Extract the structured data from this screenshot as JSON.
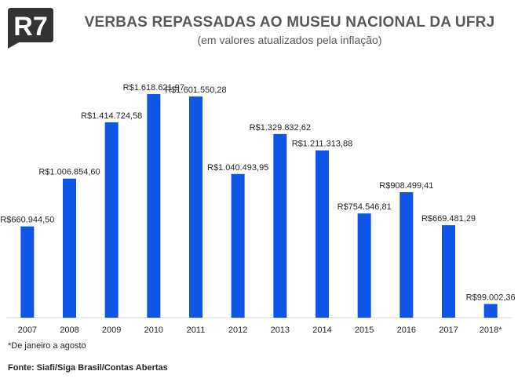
{
  "brand": {
    "logo_text": "R7",
    "logo_color": "#333333"
  },
  "header": {
    "title": "VERBAS REPASSADAS AO MUSEU NACIONAL DA UFRJ",
    "subtitle": "(em valores atualizados pela inflação)"
  },
  "chart_data": {
    "type": "bar",
    "categories": [
      "2007",
      "2008",
      "2009",
      "2010",
      "2011",
      "2012",
      "2013",
      "2014",
      "2015",
      "2016",
      "2017",
      "2018*"
    ],
    "values": [
      660944.5,
      1006854.6,
      1414724.58,
      1618621.97,
      1601550.28,
      1040493.95,
      1329832.62,
      1211313.88,
      754546.81,
      908499.41,
      669481.29,
      99002.36
    ],
    "data_labels": [
      "R$660.944,50",
      "R$1.006.854,60",
      "R$1.414.724,58",
      "R$1.618.621,97",
      "R$1.601.550,28",
      "R$1.040.493,95",
      "R$1.329.832,62",
      "R$1.211.313,88",
      "R$754.546,81",
      "R$908.499,41",
      "R$669.481,29",
      "R$99.002,36"
    ],
    "ylim": [
      0,
      1618621.97
    ],
    "bar_color": "#0f55e8",
    "grid": false
  },
  "footer": {
    "footnote": "*De janeiro a agosto",
    "source": "Fonte: Siafi/Siga Brasil/Contas Abertas"
  }
}
